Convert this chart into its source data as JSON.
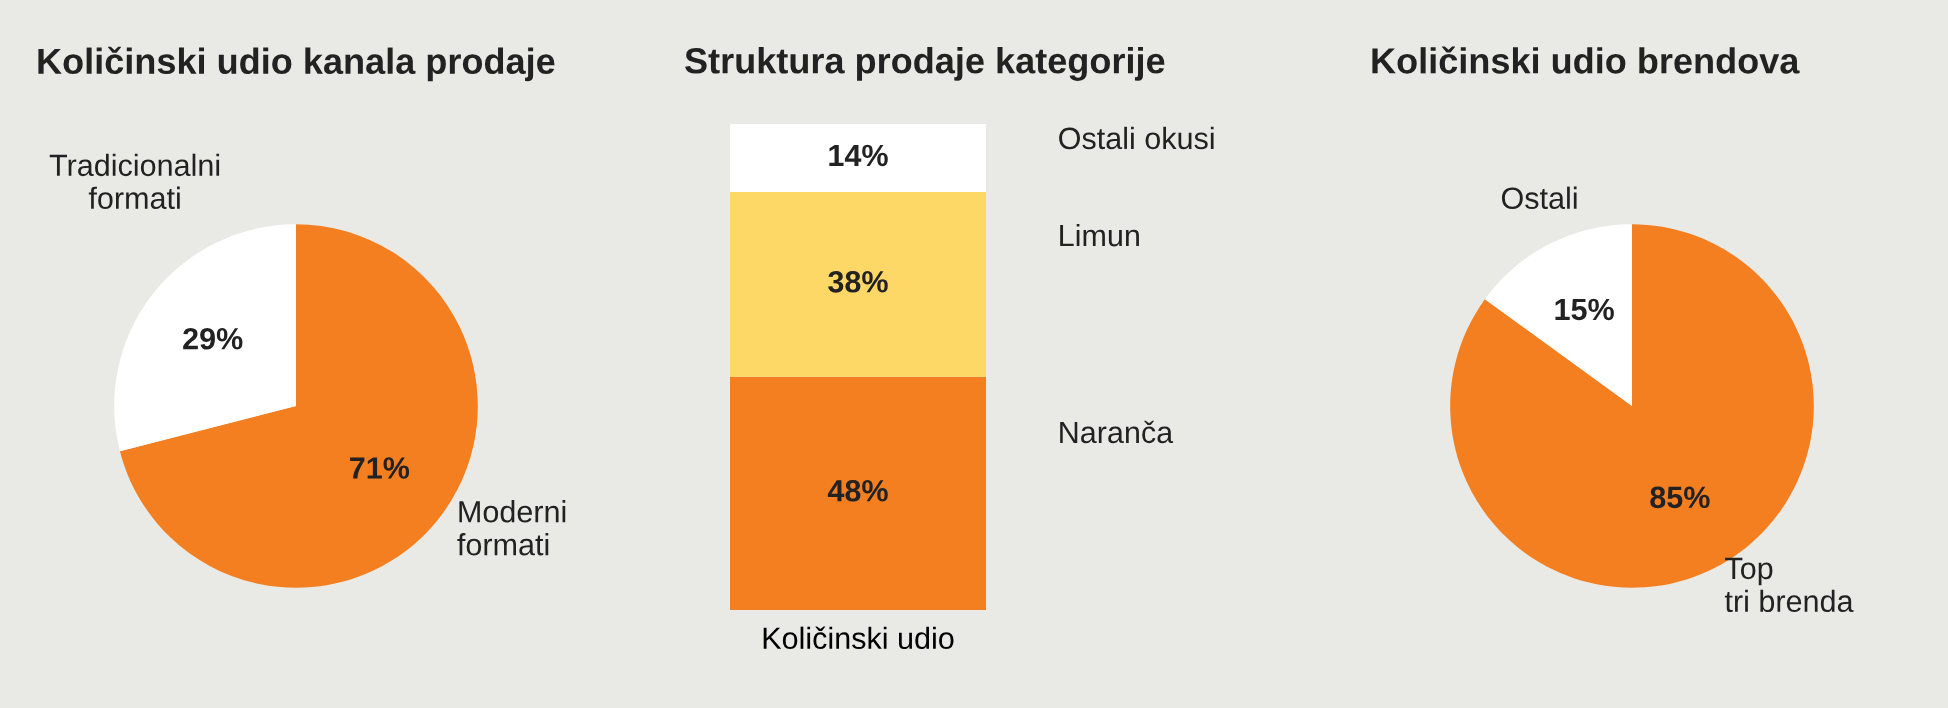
{
  "chart_data": [
    {
      "type": "pie",
      "title": "Količinski udio kanala prodaje",
      "categories": [
        "Moderni formati",
        "Tradicionalni formati"
      ],
      "values": [
        71,
        29
      ],
      "colors": [
        "#f47f20",
        "#ffffff"
      ],
      "value_labels": [
        "71%",
        "29%"
      ],
      "legend": false
    },
    {
      "type": "bar",
      "title": "Struktura prodaje kategorije",
      "categories": [
        "Količinski udio"
      ],
      "stacked": true,
      "legend": false,
      "series": [
        {
          "name": "Naranča",
          "color": "#f47f20",
          "values": [
            48
          ],
          "value_labels": [
            "48%"
          ]
        },
        {
          "name": "Limun",
          "color": "#fdd866",
          "values": [
            38
          ],
          "value_labels": [
            "38%"
          ]
        },
        {
          "name": "Ostali okusi",
          "color": "#ffffff",
          "values": [
            14
          ],
          "value_labels": [
            "14%"
          ]
        }
      ]
    },
    {
      "type": "pie",
      "title": "Količinski udio brendova",
      "categories": [
        "Top tri brenda",
        "Ostali"
      ],
      "values": [
        85,
        15
      ],
      "colors": [
        "#f47f20",
        "#ffffff"
      ],
      "value_labels": [
        "85%",
        "15%"
      ],
      "legend": false
    }
  ]
}
